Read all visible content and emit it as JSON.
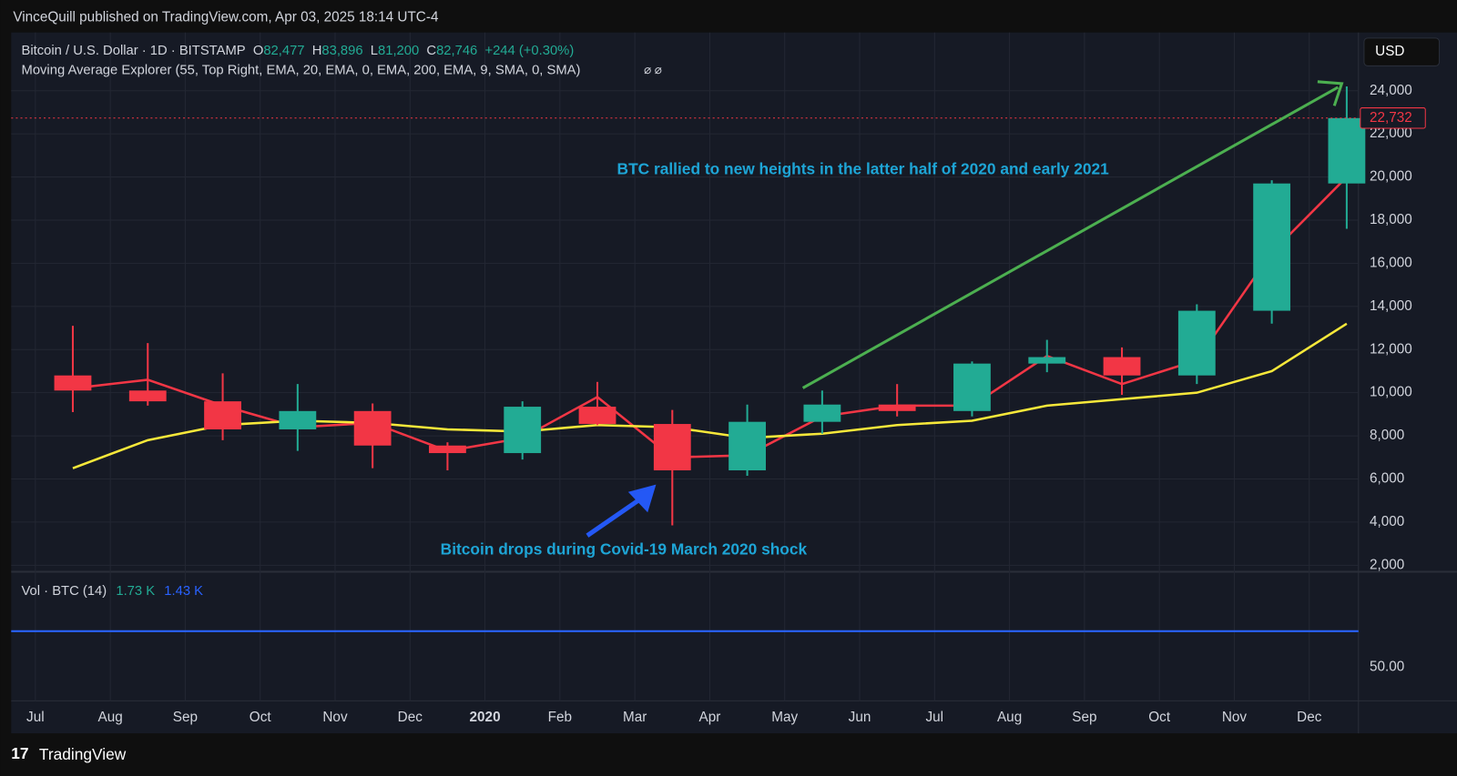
{
  "header": {
    "publisher": "VinceQuill published on TradingView.com, Apr 03, 2025 18:14 UTC-4",
    "symbol": "Bitcoin / U.S. Dollar · 1D · BITSTAMP",
    "o_label": "O",
    "o": "82,477",
    "h_label": "H",
    "h": "83,896",
    "l_label": "L",
    "l": "81,200",
    "c_label": "C",
    "c": "82,746",
    "change": "+244 (+0.30%)",
    "indicator": "Moving Average Explorer (55, Top Right, EMA, 20, EMA, 0, EMA, 200, EMA, 9, SMA, 0, SMA)",
    "currency": "USD"
  },
  "chart_data": {
    "type": "candlestick",
    "categories": [
      "Jul",
      "Aug",
      "Sep",
      "Oct",
      "Nov",
      "Dec",
      "2020",
      "Feb",
      "Mar",
      "Apr",
      "May",
      "Jun",
      "Jul",
      "Aug",
      "Sep",
      "Oct",
      "Nov",
      "Dec"
    ],
    "open": [
      10800,
      10100,
      9600,
      8300,
      9150,
      7550,
      7200,
      9350,
      8550,
      6400,
      8650,
      9450,
      9150,
      11350,
      11650,
      10800,
      13800,
      19700
    ],
    "high": [
      13100,
      12300,
      10900,
      10400,
      9500,
      7700,
      9600,
      10500,
      9200,
      9450,
      10100,
      10400,
      11450,
      12450,
      12100,
      14100,
      19850,
      24200
    ],
    "low": [
      9100,
      9400,
      7800,
      7300,
      6500,
      6400,
      6900,
      8500,
      3850,
      6150,
      8100,
      8900,
      8900,
      10950,
      9900,
      10400,
      13200,
      17600
    ],
    "close": [
      10100,
      9600,
      8300,
      9150,
      7550,
      7200,
      9350,
      8550,
      6400,
      8650,
      9450,
      9150,
      11350,
      11650,
      10800,
      13800,
      19700,
      22732
    ],
    "up_color": "#22ab94",
    "down_color": "#f23645",
    "moving_averages": [
      {
        "color": "#f23645",
        "values": [
          10200,
          10600,
          9400,
          8400,
          8600,
          7300,
          7900,
          9800,
          7000,
          7100,
          8900,
          9400,
          9400,
          11700,
          10400,
          11500,
          16500,
          20000
        ]
      },
      {
        "color": "#f7e83a",
        "values": [
          6500,
          7800,
          8500,
          8700,
          8600,
          8300,
          8200,
          8500,
          8400,
          7900,
          8100,
          8500,
          8700,
          9400,
          9700,
          10000,
          11000,
          13200
        ]
      }
    ],
    "last_price": {
      "value": 22732,
      "label": "22,732"
    },
    "ylim": [
      1740,
      26700
    ],
    "yticks": [
      {
        "value": 2000,
        "label": "2,000"
      },
      {
        "value": 4000,
        "label": "4,000"
      },
      {
        "value": 6000,
        "label": "6,000"
      },
      {
        "value": 8000,
        "label": "8,000"
      },
      {
        "value": 10000,
        "label": "10,000"
      },
      {
        "value": 12000,
        "label": "12,000"
      },
      {
        "value": 14000,
        "label": "14,000"
      },
      {
        "value": 16000,
        "label": "16,000"
      },
      {
        "value": 18000,
        "label": "18,000"
      },
      {
        "value": 20000,
        "label": "20,000"
      },
      {
        "value": 22000,
        "label": "22,000"
      },
      {
        "value": 24000,
        "label": "24,000"
      }
    ],
    "grid": true,
    "annotations": [
      "BTC rallied to new heights in the latter half of 2020 and early 2021",
      "Bitcoin drops during Covid-19 March 2020 shock"
    ]
  },
  "volume": {
    "title": "Vol · BTC (14)",
    "v1": "1.73 K",
    "v2": "1.43 K",
    "tick": "50.00"
  },
  "footer": {
    "brand": "TradingView"
  }
}
